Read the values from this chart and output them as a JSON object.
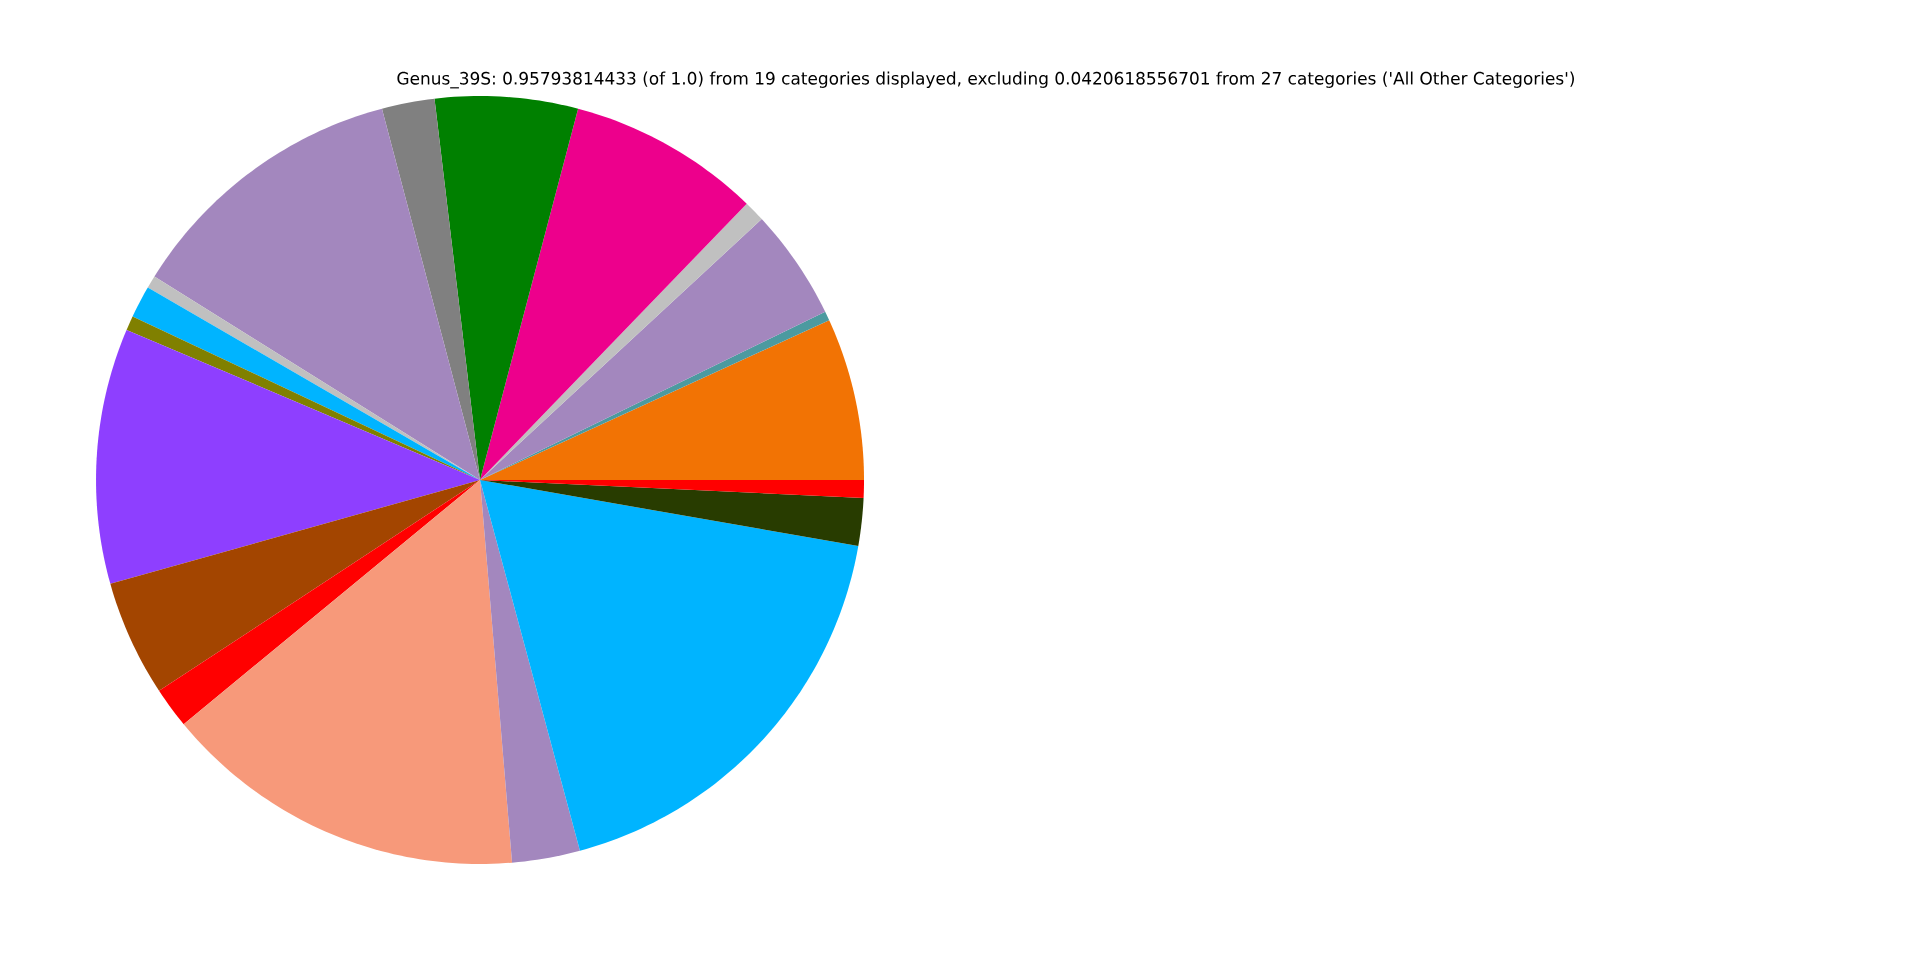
{
  "chart_data": {
    "type": "pie",
    "title": "Genus_39S: 0.95793814433 (of 1.0) from 19 categories displayed, excluding 0.0420618556701 from 27 categories ('All Other Categories')",
    "categories": [
      null,
      null,
      null,
      null,
      null,
      null,
      null,
      null,
      null,
      null,
      null,
      null,
      null,
      null,
      null,
      null,
      null,
      null,
      null
    ],
    "values": [
      6.83,
      0.39,
      4.67,
      0.89,
      8.11,
      6.0,
      2.22,
      12.0,
      0.53,
      1.36,
      0.61,
      10.75,
      4.89,
      1.72,
      15.36,
      2.86,
      18.06,
      2.0,
      0.75
    ],
    "colors": [
      "#f27304",
      "#4c9aa0",
      "#a387be",
      "#c0c0c0",
      "#ed008c",
      "#008000",
      "#808080",
      "#a387be",
      "#c0c0c0",
      "#00b4ff",
      "#808000",
      "#8e3fff",
      "#a34500",
      "#ff0000",
      "#f7997a",
      "#a387be",
      "#00b4ff",
      "#283c00",
      "#ff0000"
    ]
  }
}
